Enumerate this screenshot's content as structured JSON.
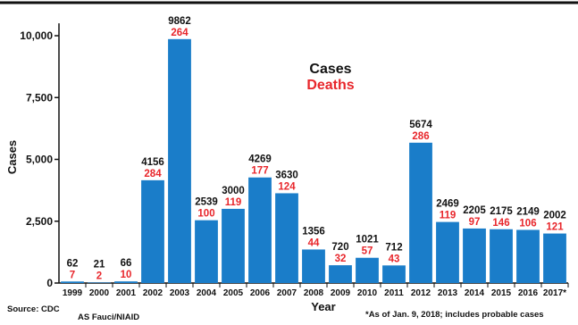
{
  "chart_data": {
    "type": "bar",
    "categories": [
      "1999",
      "2000",
      "2001",
      "2002",
      "2003",
      "2004",
      "2005",
      "2006",
      "2007",
      "2008",
      "2009",
      "2010",
      "2011",
      "2012",
      "2013",
      "2014",
      "2015",
      "2016",
      "2017*"
    ],
    "series": [
      {
        "name": "Cases",
        "values": [
          62,
          21,
          66,
          4156,
          9862,
          2539,
          3000,
          4269,
          3630,
          1356,
          720,
          1021,
          712,
          5674,
          2469,
          2205,
          2175,
          2149,
          2002
        ]
      },
      {
        "name": "Deaths",
        "values": [
          7,
          2,
          10,
          284,
          264,
          100,
          119,
          177,
          124,
          44,
          32,
          57,
          43,
          286,
          119,
          97,
          146,
          106,
          121
        ]
      }
    ],
    "case_labels": [
      "62",
      "21",
      "66",
      "4156",
      "9862",
      "2539",
      "3000",
      "4269",
      "3630",
      "1356",
      "720",
      "1021",
      "712",
      "5674",
      "2469",
      "2205",
      "2175",
      "2149",
      "2002"
    ],
    "death_labels": [
      "7",
      "2",
      "10",
      "284",
      "264",
      "100",
      "119",
      "177",
      "124",
      "44",
      "32",
      "57",
      "43",
      "286",
      "119",
      "97",
      "146",
      "106",
      "121"
    ],
    "xlabel": "Year",
    "ylabel": "Cases",
    "ylim": [
      0,
      10500
    ],
    "yticks": [
      0,
      2500,
      5000,
      7500,
      10000
    ],
    "ytick_labels": [
      "0",
      "2,500",
      "5,000",
      "7,500",
      "10,000"
    ],
    "legend": {
      "cases": "Cases",
      "deaths": "Deaths",
      "placement": "top-center"
    },
    "colors": {
      "bar": "#1a7dc9",
      "cases_text": "#111111",
      "deaths_text": "#e8262b"
    },
    "grid": false
  },
  "footer": {
    "source": "Source: CDC",
    "credit": "AS Fauci/NIAID",
    "note": "*As of Jan. 9, 2018; includes probable cases"
  }
}
